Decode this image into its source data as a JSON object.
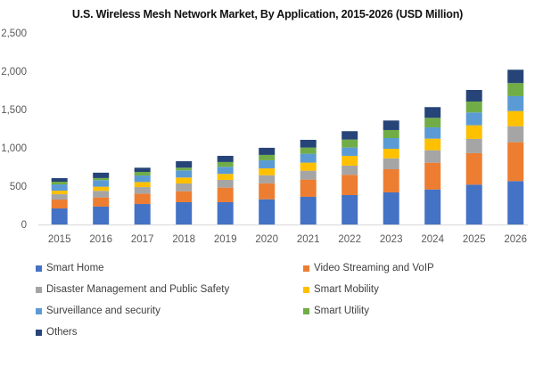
{
  "chart_data": {
    "type": "bar",
    "stacked": true,
    "title": "U.S. Wireless Mesh Network Market, By Application, 2015-2026 (USD Million)",
    "xlabel": "",
    "ylabel": "",
    "ylim": [
      0,
      2500
    ],
    "yticks": [
      0,
      500,
      1000,
      1500,
      2000,
      2500
    ],
    "ytick_labels": [
      "0",
      "500",
      "1,000",
      "1,500",
      "2,000",
      "2,500"
    ],
    "grid": false,
    "legend_position": "bottom",
    "categories": [
      "2015",
      "2016",
      "2017",
      "2018",
      "2019",
      "2020",
      "2021",
      "2022",
      "2023",
      "2024",
      "2025",
      "2026"
    ],
    "series": [
      {
        "name": "Smart Home",
        "color": "#4472C4",
        "values": [
          209,
          233,
          267,
          291,
          291,
          329,
          361,
          384,
          419,
          457,
          520,
          566
        ]
      },
      {
        "name": "Video Streaming and VoIP",
        "color": "#ED7D31",
        "values": [
          116,
          120,
          136,
          143,
          190,
          209,
          225,
          264,
          302,
          349,
          411,
          508
        ]
      },
      {
        "name": "Disaster Management and Public Safety",
        "color": "#A5A5A5",
        "values": [
          70,
          86,
          85,
          101,
          101,
          105,
          116,
          120,
          143,
          163,
          186,
          209
        ]
      },
      {
        "name": "Smart Mobility",
        "color": "#FFC000",
        "values": [
          47,
          54,
          66,
          78,
          78,
          90,
          105,
          128,
          124,
          151,
          178,
          198
        ]
      },
      {
        "name": "Surveillance and security",
        "color": "#5B9BD5",
        "values": [
          81,
          86,
          85,
          93,
          93,
          105,
          116,
          108,
          140,
          148,
          167,
          194
        ]
      },
      {
        "name": "Smart Utility",
        "color": "#70AD47",
        "values": [
          35,
          27,
          47,
          35,
          62,
          70,
          81,
          105,
          105,
          124,
          143,
          171
        ]
      },
      {
        "name": "Others",
        "color": "#264478",
        "values": [
          47,
          70,
          55,
          85,
          81,
          93,
          101,
          109,
          124,
          140,
          151,
          174
        ]
      }
    ]
  },
  "legend": {
    "items": [
      {
        "label": "Smart Home",
        "color": "#4472C4"
      },
      {
        "label": "Video Streaming and VoIP",
        "color": "#ED7D31"
      },
      {
        "label": "Disaster Management and Public Safety",
        "color": "#A5A5A5"
      },
      {
        "label": "Smart Mobility",
        "color": "#FFC000"
      },
      {
        "label": "Surveillance and security",
        "color": "#5B9BD5"
      },
      {
        "label": "Smart Utility",
        "color": "#70AD47"
      },
      {
        "label": "Others",
        "color": "#264478"
      }
    ]
  }
}
